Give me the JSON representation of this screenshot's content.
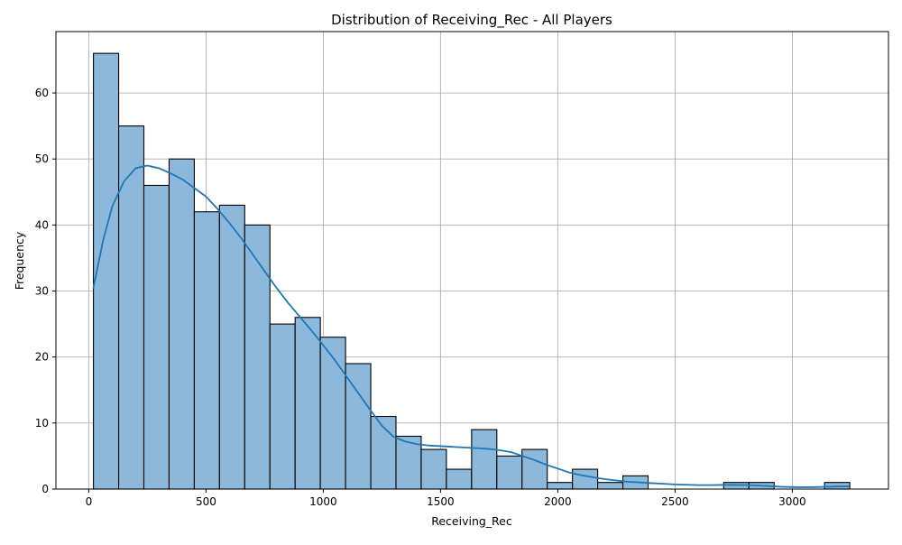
{
  "chart_data": {
    "type": "bar",
    "subtype": "histogram with kde line",
    "title": "Distribution of Receiving_Rec - All Players",
    "xlabel": "Receiving_Rec",
    "ylabel": "Frequency",
    "xlim": [
      -140,
      3410
    ],
    "ylim": [
      0,
      69.3
    ],
    "x_ticks": [
      0,
      500,
      1000,
      1500,
      2000,
      2500,
      3000
    ],
    "y_ticks": [
      0,
      10,
      20,
      30,
      40,
      50,
      60
    ],
    "grid": true,
    "bin_start": 20,
    "bin_width": 107.5,
    "values": [
      66,
      55,
      46,
      50,
      42,
      43,
      40,
      25,
      26,
      23,
      19,
      11,
      8,
      6,
      3,
      9,
      5,
      6,
      1,
      3,
      1,
      2,
      0,
      0,
      0,
      1,
      1,
      0,
      0,
      1
    ],
    "kde": {
      "x": [
        20,
        60,
        100,
        150,
        200,
        250,
        300,
        350,
        400,
        450,
        500,
        550,
        600,
        650,
        700,
        750,
        800,
        850,
        900,
        950,
        1000,
        1050,
        1100,
        1150,
        1200,
        1250,
        1300,
        1350,
        1400,
        1450,
        1500,
        1550,
        1600,
        1650,
        1700,
        1750,
        1800,
        1850,
        1900,
        1950,
        2000,
        2050,
        2100,
        2150,
        2200,
        2250,
        2300,
        2350,
        2400,
        2450,
        2500,
        2550,
        2600,
        2650,
        2700,
        2750,
        2800,
        2850,
        2900,
        2950,
        3000,
        3050,
        3100,
        3150,
        3200,
        3240
      ],
      "y": [
        30.5,
        37.5,
        42.8,
        46.6,
        48.6,
        49.0,
        48.6,
        47.8,
        46.9,
        45.6,
        44.3,
        42.4,
        40.3,
        38.0,
        35.5,
        33.0,
        30.5,
        28.2,
        26.1,
        24.0,
        21.8,
        19.5,
        17.0,
        14.5,
        12.0,
        9.6,
        7.9,
        7.2,
        6.8,
        6.6,
        6.5,
        6.4,
        6.3,
        6.2,
        6.1,
        5.9,
        5.6,
        5.0,
        4.4,
        3.7,
        3.1,
        2.5,
        2.1,
        1.8,
        1.5,
        1.3,
        1.1,
        1.0,
        0.9,
        0.8,
        0.7,
        0.65,
        0.6,
        0.6,
        0.62,
        0.62,
        0.6,
        0.55,
        0.45,
        0.35,
        0.3,
        0.28,
        0.3,
        0.35,
        0.4,
        0.42
      ]
    },
    "colors": {
      "bar_fill": "#8cb9db",
      "bar_edge": "#000000",
      "kde_line": "#1f77b4",
      "grid": "#b0b0b0"
    }
  }
}
